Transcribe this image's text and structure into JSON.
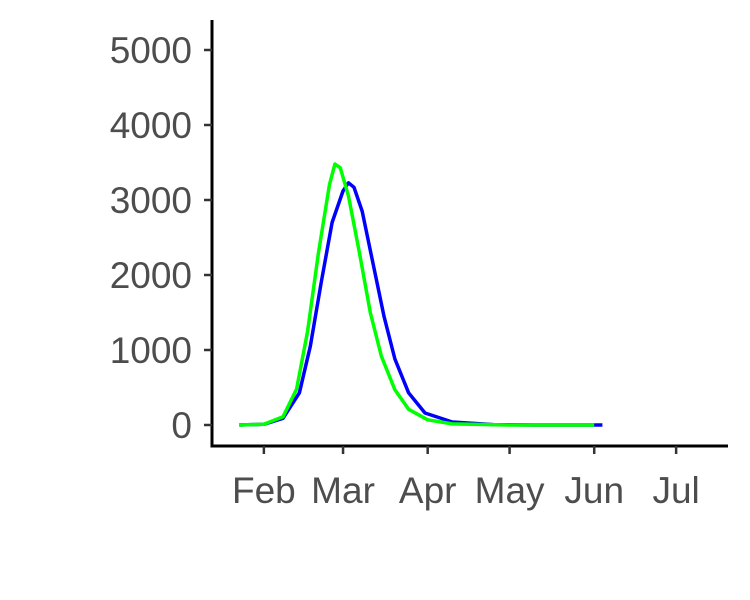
{
  "chart_data": {
    "type": "line",
    "title": "",
    "xlabel": "",
    "ylabel": "",
    "xlim": [
      "2020-01-13",
      "2020-07-20"
    ],
    "ylim": [
      -280,
      5400
    ],
    "x_ticks": [
      {
        "date": "2020-02-01",
        "label": "Feb"
      },
      {
        "date": "2020-03-01",
        "label": "Mar"
      },
      {
        "date": "2020-04-01",
        "label": "Apr"
      },
      {
        "date": "2020-05-01",
        "label": "May"
      },
      {
        "date": "2020-06-01",
        "label": "Jun"
      },
      {
        "date": "2020-07-01",
        "label": "Jul"
      }
    ],
    "y_ticks": [
      0,
      1000,
      2000,
      3000,
      4000,
      5000
    ],
    "grid": false,
    "legend": "none",
    "series": [
      {
        "color": "#0000ff",
        "points": [
          [
            "2020-01-23",
            0
          ],
          [
            "2020-02-01",
            10
          ],
          [
            "2020-02-08",
            90
          ],
          [
            "2020-02-14",
            430
          ],
          [
            "2020-02-18",
            1050
          ],
          [
            "2020-02-22",
            1900
          ],
          [
            "2020-02-26",
            2700
          ],
          [
            "2020-03-01",
            3120
          ],
          [
            "2020-03-03",
            3230
          ],
          [
            "2020-03-05",
            3170
          ],
          [
            "2020-03-08",
            2850
          ],
          [
            "2020-03-12",
            2150
          ],
          [
            "2020-03-16",
            1450
          ],
          [
            "2020-03-20",
            880
          ],
          [
            "2020-03-25",
            430
          ],
          [
            "2020-03-31",
            160
          ],
          [
            "2020-04-10",
            40
          ],
          [
            "2020-04-25",
            5
          ],
          [
            "2020-05-10",
            0
          ],
          [
            "2020-06-04",
            0
          ]
        ]
      },
      {
        "color": "#00ff00",
        "points": [
          [
            "2020-01-23",
            0
          ],
          [
            "2020-02-01",
            10
          ],
          [
            "2020-02-08",
            110
          ],
          [
            "2020-02-13",
            480
          ],
          [
            "2020-02-17",
            1250
          ],
          [
            "2020-02-21",
            2300
          ],
          [
            "2020-02-25",
            3200
          ],
          [
            "2020-02-27",
            3480
          ],
          [
            "2020-02-29",
            3430
          ],
          [
            "2020-03-03",
            3050
          ],
          [
            "2020-03-07",
            2300
          ],
          [
            "2020-03-11",
            1500
          ],
          [
            "2020-03-15",
            920
          ],
          [
            "2020-03-20",
            470
          ],
          [
            "2020-03-25",
            210
          ],
          [
            "2020-04-01",
            70
          ],
          [
            "2020-04-10",
            15
          ],
          [
            "2020-05-01",
            0
          ],
          [
            "2020-06-01",
            0
          ]
        ]
      }
    ]
  }
}
